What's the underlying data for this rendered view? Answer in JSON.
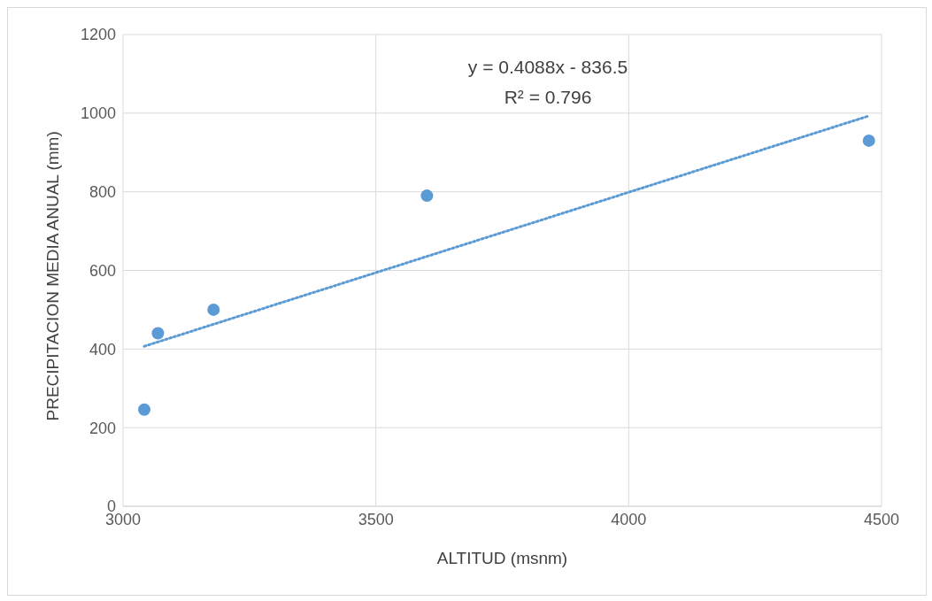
{
  "chart_data": {
    "type": "scatter",
    "xlabel": "ALTITUD (msnm)",
    "ylabel": "PRECIPITACION MEDIA ANUAL (mm)",
    "annotations": [
      "y = 0.4088x - 836.5",
      "R² = 0.796"
    ],
    "series": [
      {
        "color": "#5b9bd5",
        "x": [
          3042,
          3069,
          3179,
          3601,
          4475
        ],
        "values": [
          246,
          440,
          500,
          790,
          930
        ],
        "marker": "circle"
      },
      {
        "type": "line",
        "color": "#5b9bd5",
        "x": [
          3042,
          4475
        ],
        "values": [
          407,
          993
        ],
        "line_style": "dotted",
        "marker": "none"
      }
    ],
    "xlim": [
      3000,
      4500
    ],
    "xticks": [
      3000,
      3500,
      4000,
      4500
    ],
    "ylim": [
      0,
      1200
    ],
    "yticks": [
      0,
      200,
      400,
      600,
      800,
      1000,
      1200
    ],
    "grid": true,
    "legend": false
  }
}
